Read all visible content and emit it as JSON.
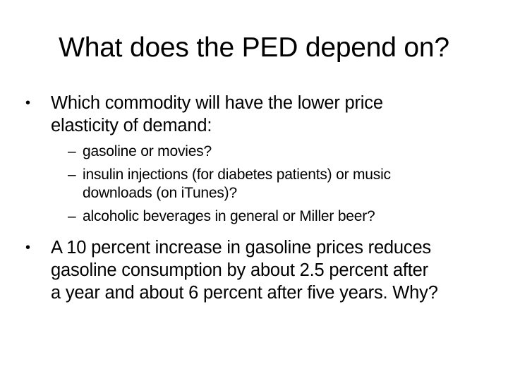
{
  "slide": {
    "title": "What does the PED depend on?",
    "bullets": [
      {
        "marker": "•",
        "text": "Which commodity will have the lower price elasticity of demand:",
        "lines": [
          "Which commodity will have the lower price",
          "elasticity of demand:"
        ],
        "sub_items": [
          {
            "marker": "–",
            "text": "gasoline or movies?"
          },
          {
            "marker": "–",
            "text": "insulin injections (for diabetes patients) or music downloads (on iTunes)?",
            "lines": [
              "insulin injections (for diabetes patients) or music",
              "downloads (on iTunes)?"
            ]
          },
          {
            "marker": "–",
            "text": "alcoholic beverages in general or Miller beer?"
          }
        ]
      },
      {
        "marker": "•",
        "text": "A 10 percent increase in gasoline prices reduces gasoline consumption by about 2.5 percent after a year and about 6 percent after five years. Why?",
        "lines": [
          "A 10 percent increase in gasoline prices reduces",
          "gasoline consumption by about 2.5 percent after",
          "a year and about 6 percent after five years. Why?"
        ]
      }
    ]
  }
}
